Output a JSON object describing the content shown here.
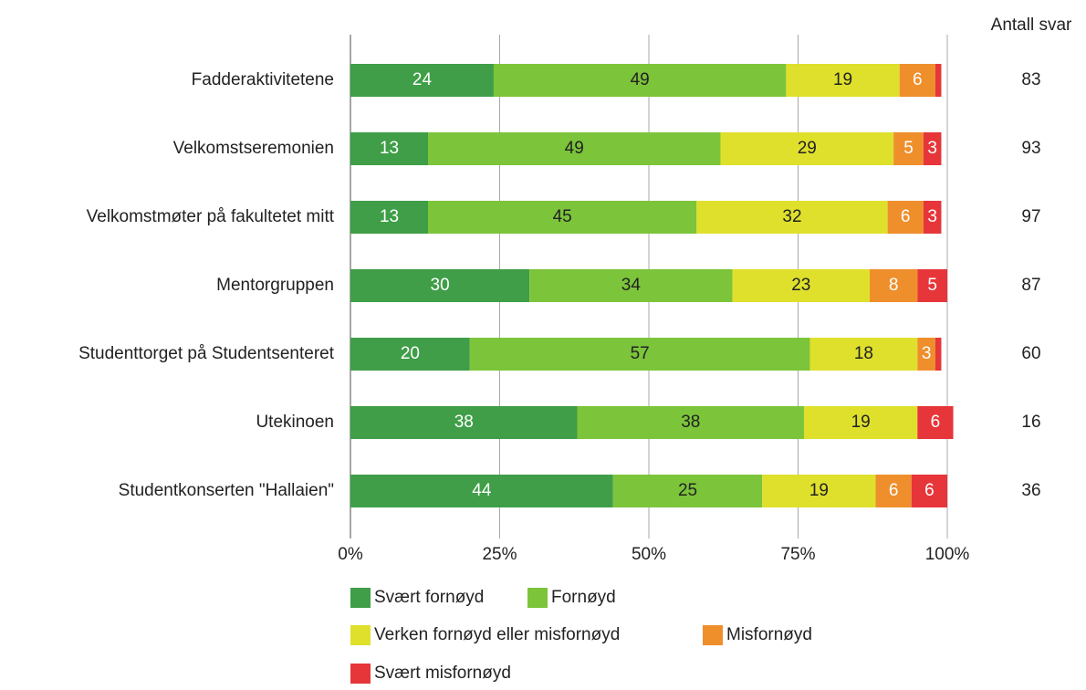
{
  "chart_data": {
    "type": "stacked_bar_horizontal",
    "categories": [
      "Fadderaktivitetene",
      "Velkomstseremonien",
      "Velkomstmøter på fakultetet mitt",
      "Mentorgruppen",
      "Studenttorget på Studentsenteret",
      "Utekinoen",
      "Studentkonserten  \"Hallaien\""
    ],
    "series": [
      {
        "name": "Svært fornøyd",
        "color": "#3f9e47",
        "values": [
          24,
          13,
          13,
          30,
          20,
          38,
          44
        ]
      },
      {
        "name": "Fornøyd",
        "color": "#7cc43a",
        "values": [
          49,
          49,
          45,
          34,
          57,
          38,
          25
        ]
      },
      {
        "name": "Verken fornøyd eller misfornøyd",
        "color": "#dfe02c",
        "values": [
          19,
          29,
          32,
          23,
          18,
          19,
          19
        ]
      },
      {
        "name": "Misfornøyd",
        "color": "#ee8f2c",
        "values": [
          6,
          5,
          6,
          8,
          3,
          0,
          6
        ]
      },
      {
        "name": "Svært misfornøyd",
        "color": "#e6363a",
        "values": [
          1,
          3,
          3,
          5,
          1,
          6,
          6
        ]
      }
    ],
    "xlim": [
      0,
      100
    ],
    "xticks": [
      {
        "value": 0,
        "label": "0%"
      },
      {
        "value": 25,
        "label": "25%"
      },
      {
        "value": 50,
        "label": "50%"
      },
      {
        "value": 75,
        "label": "75%"
      },
      {
        "value": 100,
        "label": "100%"
      }
    ],
    "grid": true,
    "counts_title": "Antall svar",
    "counts": [
      83,
      93,
      97,
      87,
      60,
      16,
      36
    ]
  }
}
